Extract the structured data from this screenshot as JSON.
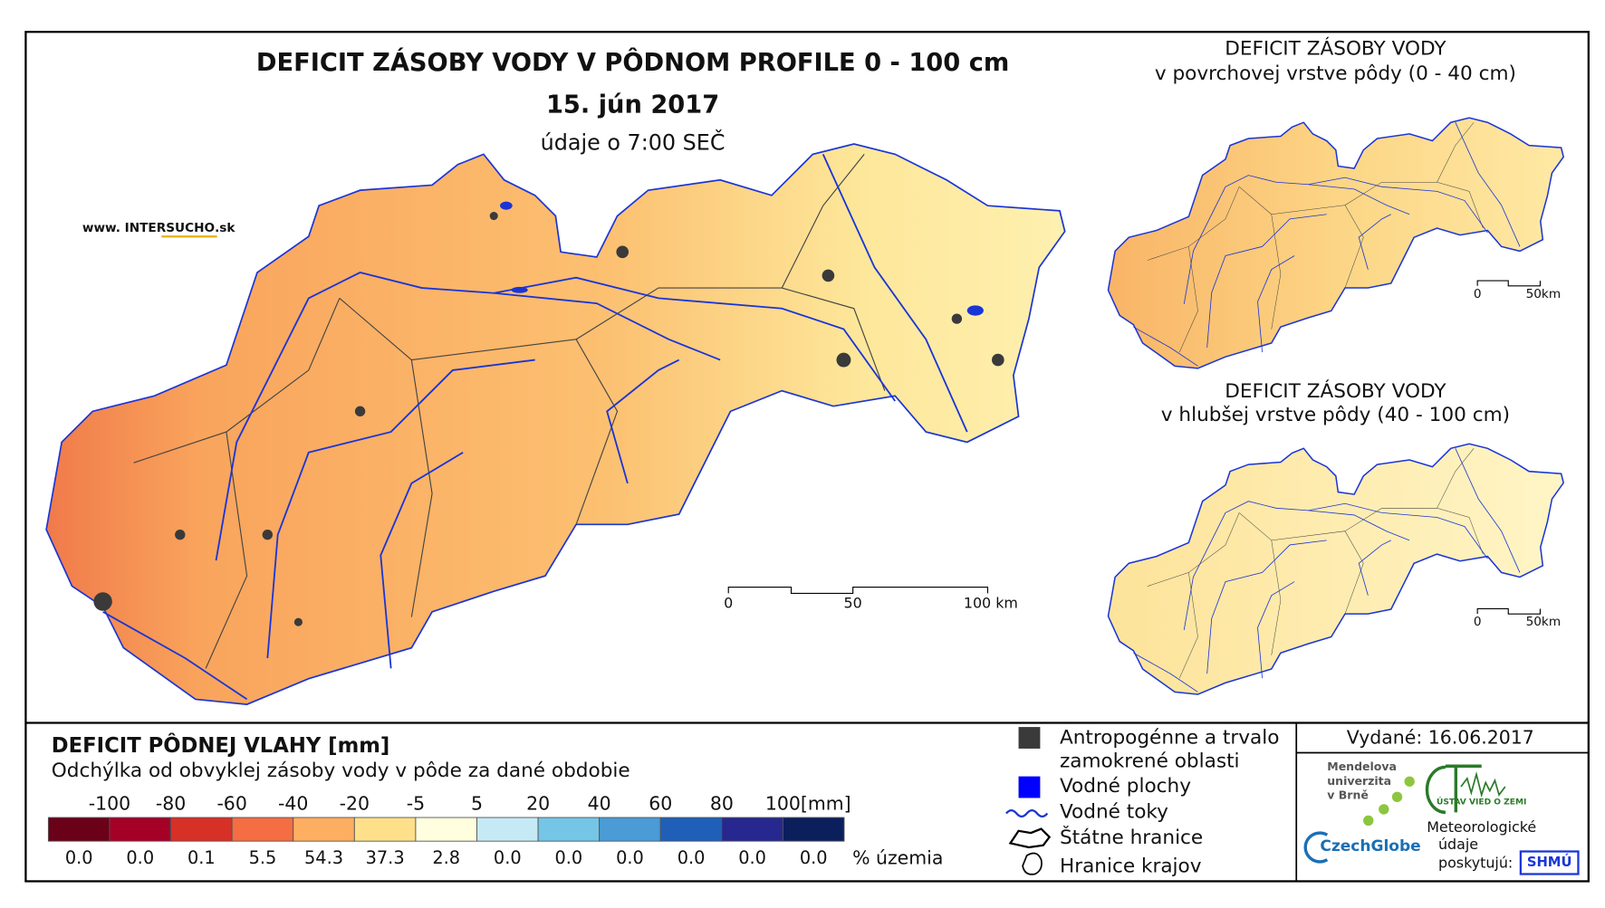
{
  "header": {
    "title": "DEFICIT ZÁSOBY VODY V PÔDNOM PROFILE 0 - 100 cm",
    "date": "15. jún 2017",
    "time": "údaje o 7:00 SEČ"
  },
  "website": {
    "prefix": "www. INTER",
    "highlight": "SUCHO",
    "suffix": ".sk"
  },
  "main_map": {
    "scale_labels": [
      "0",
      "50",
      "100 km"
    ]
  },
  "insets": [
    {
      "title": [
        "DEFICIT ZÁSOBY VODY",
        "v povrchovej vrstve pôdy (0 - 40 cm)"
      ],
      "scale_labels": [
        "0",
        "50km"
      ]
    },
    {
      "title": [
        "DEFICIT ZÁSOBY VODY",
        "v hlubšej vrstve pôdy (40 - 100 cm)"
      ],
      "scale_labels": [
        "0",
        "50km"
      ]
    }
  ],
  "legend": {
    "title": "DEFICIT PÔDNEJ VLAHY [mm]",
    "subtitle": "Odchýlka od obvyklej zásoby vody v pôde za dané obdobie",
    "class_labels": [
      "-100",
      "-80",
      "-60",
      "-40",
      "-20",
      "-5",
      "5",
      "20",
      "40",
      "60",
      "80",
      "100"
    ],
    "unit": "[mm]",
    "colors": [
      "#6b0019",
      "#a50026",
      "#d73027",
      "#f46d43",
      "#fdae61",
      "#fee08b",
      "#ffffe0",
      "#c6eaf5",
      "#74c5e6",
      "#4a9bd6",
      "#1f5fb8",
      "#26288f",
      "#0a1f5c"
    ],
    "percentages": [
      "0.0",
      "0.0",
      "0.1",
      "5.5",
      "54.3",
      "37.3",
      "2.8",
      "0.0",
      "0.0",
      "0.0",
      "0.0",
      "0.0",
      "0.0"
    ],
    "percent_unit": "% územia"
  },
  "map_legend": [
    {
      "lines": [
        "Antropogénne a trvalo",
        "zamokrené oblasti"
      ]
    },
    {
      "lines": [
        "Vodné plochy"
      ]
    },
    {
      "lines": [
        "Vodné toky"
      ]
    },
    {
      "lines": [
        "Štátne hranice"
      ]
    },
    {
      "lines": [
        "Hranice krajov"
      ]
    }
  ],
  "issued": "Vydané: 16.06.2017",
  "logos": {
    "mendel": [
      "Mendelova",
      "univerzita",
      "v Brně"
    ],
    "czechglobe": "CzechGlobe",
    "institute": "ÚSTAV VIED O ZEMI",
    "meteo": [
      "Meteorologické",
      "údaje",
      "poskytujú:"
    ],
    "shmu": "SHMÚ"
  }
}
